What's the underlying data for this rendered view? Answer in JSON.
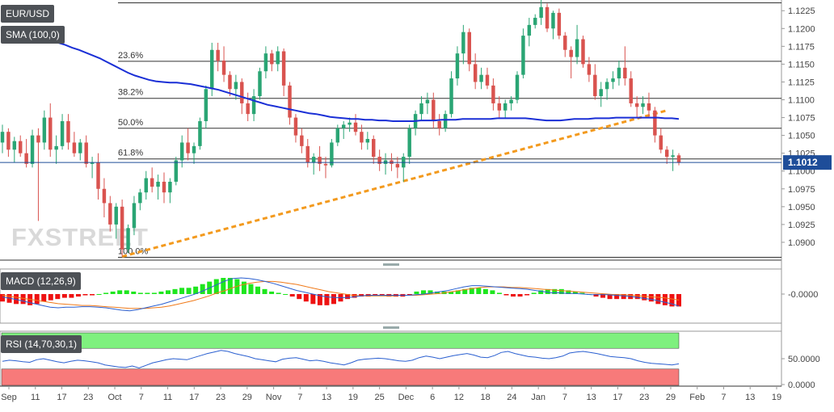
{
  "symbol": "EUR/USD",
  "watermark": "FXSTREET",
  "indicators": {
    "sma_label": "SMA (100,0)",
    "macd_label": "MACD (12,26,9)",
    "rsi_label": "RSI (14,70,30,1)"
  },
  "colors": {
    "up": "#2aa574",
    "down": "#d9534f",
    "sma": "#1a2fd6",
    "trend": "#f39a1e",
    "macd_pos": "#1ee61e",
    "macd_neg": "#ee1111",
    "macd_line": "#2a5fd0",
    "signal_line": "#f07a1a",
    "rsi_line": "#2a5fd0",
    "ob_zone": "#7ff07f",
    "os_zone": "#f77a7a",
    "price_tag": "#1e4d99"
  },
  "chart_data": [
    {
      "type": "candlestick",
      "name": "price",
      "yticks": [
        "1.1225",
        "1.1200",
        "1.1175",
        "1.1150",
        "1.1125",
        "1.1100",
        "1.1075",
        "1.1050",
        "1.1025",
        "1.1000",
        "1.0975",
        "1.0950",
        "1.0925",
        "1.0900"
      ],
      "ylim": [
        1.0875,
        1.124
      ],
      "current_price": "1.1012",
      "x_labels": [
        "Sep",
        "11",
        "17",
        "23",
        "Oct",
        "7",
        "11",
        "17",
        "23",
        "29",
        "Nov",
        "7",
        "13",
        "19",
        "25",
        "Dec",
        "6",
        "12",
        "18",
        "24",
        "Jan",
        "7",
        "13",
        "17",
        "23",
        "29",
        "Feb",
        "7",
        "13",
        "19"
      ],
      "fibonacci": [
        {
          "label": "23.6%",
          "level": 1.1154
        },
        {
          "label": "38.2%",
          "level": 1.1102
        },
        {
          "label": "50.0%",
          "level": 1.106
        },
        {
          "label": "61.8%",
          "level": 1.1017
        },
        {
          "label": "100.0%",
          "level": 1.0879
        }
      ],
      "top_line": 1.1236,
      "trendline": [
        [
          1.088,
          1.1085
        ]
      ],
      "ohlc": [
        [
          1.104,
          1.1065,
          1.1025,
          1.1055
        ],
        [
          1.1055,
          1.106,
          1.102,
          1.103
        ],
        [
          1.103,
          1.1048,
          1.1012,
          1.1042
        ],
        [
          1.1042,
          1.105,
          1.102,
          1.1025
        ],
        [
          1.1025,
          1.1045,
          1.1005,
          1.101
        ],
        [
          1.101,
          1.1058,
          1.1005,
          1.105
        ],
        [
          1.105,
          1.106,
          1.093,
          1.104
        ],
        [
          1.104,
          1.1085,
          1.103,
          1.1075
        ],
        [
          1.1075,
          1.1095,
          1.102,
          1.103
        ],
        [
          1.103,
          1.105,
          1.101,
          1.1035
        ],
        [
          1.1035,
          1.108,
          1.103,
          1.107
        ],
        [
          1.107,
          1.108,
          1.103,
          1.104
        ],
        [
          1.104,
          1.1055,
          1.102,
          1.1025
        ],
        [
          1.1025,
          1.1045,
          1.1015,
          1.104
        ],
        [
          1.104,
          1.105,
          1.1005,
          1.101
        ],
        [
          1.101,
          1.102,
          1.099,
          1.1012
        ],
        [
          1.1012,
          1.1025,
          1.096,
          1.0975
        ],
        [
          1.0975,
          1.099,
          1.0935,
          1.0955
        ],
        [
          1.0955,
          1.0965,
          1.0915,
          1.0925
        ],
        [
          1.0925,
          1.0955,
          1.0905,
          1.095
        ],
        [
          1.095,
          1.096,
          1.088,
          1.089
        ],
        [
          1.089,
          1.0925,
          1.0885,
          1.092
        ],
        [
          1.092,
          1.0965,
          1.091,
          1.0955
        ],
        [
          1.0955,
          1.0975,
          1.0945,
          1.097
        ],
        [
          1.097,
          1.1,
          1.096,
          1.099
        ],
        [
          1.099,
          1.1005,
          1.097,
          1.0978
        ],
        [
          1.0978,
          1.0995,
          1.096,
          1.0985
        ],
        [
          1.0985,
          1.0998,
          1.0955,
          1.097
        ],
        [
          1.097,
          1.099,
          1.0955,
          1.0985
        ],
        [
          1.0985,
          1.102,
          1.098,
          1.1015
        ],
        [
          1.1015,
          1.105,
          1.1005,
          1.104
        ],
        [
          1.104,
          1.106,
          1.1015,
          1.1025
        ],
        [
          1.1025,
          1.104,
          1.101,
          1.1035
        ],
        [
          1.1035,
          1.1075,
          1.103,
          1.107
        ],
        [
          1.107,
          1.112,
          1.106,
          1.1115
        ],
        [
          1.1115,
          1.118,
          1.1105,
          1.117
        ],
        [
          1.117,
          1.118,
          1.114,
          1.1155
        ],
        [
          1.1155,
          1.1175,
          1.1125,
          1.1135
        ],
        [
          1.1135,
          1.114,
          1.1105,
          1.1115
        ],
        [
          1.1115,
          1.1135,
          1.11,
          1.1125
        ],
        [
          1.1125,
          1.113,
          1.108,
          1.1095
        ],
        [
          1.1095,
          1.111,
          1.107,
          1.108
        ],
        [
          1.108,
          1.1115,
          1.107,
          1.1105
        ],
        [
          1.1105,
          1.1145,
          1.11,
          1.114
        ],
        [
          1.114,
          1.1175,
          1.113,
          1.1165
        ],
        [
          1.1165,
          1.117,
          1.114,
          1.115
        ],
        [
          1.115,
          1.1175,
          1.114,
          1.1168
        ],
        [
          1.1168,
          1.1172,
          1.1105,
          1.112
        ],
        [
          1.112,
          1.1125,
          1.1065,
          1.1075
        ],
        [
          1.1075,
          1.108,
          1.104,
          1.105
        ],
        [
          1.105,
          1.106,
          1.1025,
          1.1035
        ],
        [
          1.1035,
          1.1045,
          1.1005,
          1.1012
        ],
        [
          1.1012,
          1.1025,
          1.0995,
          1.102
        ],
        [
          1.102,
          1.1035,
          1.1,
          1.101
        ],
        [
          1.101,
          1.102,
          1.099,
          1.1008
        ],
        [
          1.1008,
          1.1045,
          1.1005,
          1.104
        ],
        [
          1.104,
          1.1065,
          1.1035,
          1.106
        ],
        [
          1.106,
          1.107,
          1.1045,
          1.1065
        ],
        [
          1.1065,
          1.1075,
          1.1055,
          1.1068
        ],
        [
          1.1068,
          1.108,
          1.105,
          1.1055
        ],
        [
          1.1055,
          1.1065,
          1.103,
          1.104
        ],
        [
          1.104,
          1.1055,
          1.103,
          1.1045
        ],
        [
          1.1045,
          1.105,
          1.101,
          1.102
        ],
        [
          1.102,
          1.103,
          1.1,
          1.101
        ],
        [
          1.101,
          1.1025,
          1.0995,
          1.1015
        ],
        [
          1.1015,
          1.1025,
          1.1,
          1.101
        ],
        [
          1.101,
          1.102,
          1.099,
          1.1005
        ],
        [
          1.1005,
          1.1025,
          1.0985,
          1.102
        ],
        [
          1.102,
          1.1065,
          1.101,
          1.106
        ],
        [
          1.106,
          1.1085,
          1.105,
          1.108
        ],
        [
          1.108,
          1.1105,
          1.107,
          1.1095
        ],
        [
          1.1095,
          1.111,
          1.108,
          1.11
        ],
        [
          1.11,
          1.111,
          1.106,
          1.107
        ],
        [
          1.107,
          1.108,
          1.105,
          1.106
        ],
        [
          1.106,
          1.1085,
          1.1055,
          1.108
        ],
        [
          1.108,
          1.114,
          1.1075,
          1.113
        ],
        [
          1.113,
          1.1175,
          1.112,
          1.1165
        ],
        [
          1.1165,
          1.1205,
          1.115,
          1.1195
        ],
        [
          1.1195,
          1.12,
          1.114,
          1.115
        ],
        [
          1.115,
          1.1165,
          1.1115,
          1.1125
        ],
        [
          1.1125,
          1.1145,
          1.1115,
          1.1135
        ],
        [
          1.1135,
          1.1145,
          1.1115,
          1.112
        ],
        [
          1.112,
          1.113,
          1.1085,
          1.1095
        ],
        [
          1.1095,
          1.1105,
          1.1075,
          1.1085
        ],
        [
          1.1085,
          1.11,
          1.1075,
          1.1095
        ],
        [
          1.1095,
          1.1105,
          1.1085,
          1.11
        ],
        [
          1.11,
          1.114,
          1.1095,
          1.1135
        ],
        [
          1.1135,
          1.12,
          1.113,
          1.119
        ],
        [
          1.119,
          1.1215,
          1.1175,
          1.1205
        ],
        [
          1.1205,
          1.122,
          1.12,
          1.1215
        ],
        [
          1.1215,
          1.124,
          1.1205,
          1.123
        ],
        [
          1.123,
          1.1235,
          1.1195,
          1.12
        ],
        [
          1.12,
          1.1225,
          1.1185,
          1.1222
        ],
        [
          1.1222,
          1.1228,
          1.1185,
          1.119
        ],
        [
          1.119,
          1.1195,
          1.116,
          1.117
        ],
        [
          1.117,
          1.1175,
          1.113,
          1.116
        ],
        [
          1.116,
          1.1205,
          1.115,
          1.1185
        ],
        [
          1.1185,
          1.119,
          1.1145,
          1.115
        ],
        [
          1.115,
          1.116,
          1.1125,
          1.1135
        ],
        [
          1.1135,
          1.115,
          1.11,
          1.1105
        ],
        [
          1.1105,
          1.1125,
          1.109,
          1.1115
        ],
        [
          1.1115,
          1.113,
          1.11,
          1.1125
        ],
        [
          1.1125,
          1.114,
          1.1115,
          1.113
        ],
        [
          1.113,
          1.1155,
          1.112,
          1.1145
        ],
        [
          1.1145,
          1.1175,
          1.112,
          1.113
        ],
        [
          1.113,
          1.114,
          1.109,
          1.1095
        ],
        [
          1.1095,
          1.1105,
          1.1075,
          1.109
        ],
        [
          1.109,
          1.1105,
          1.108,
          1.1095
        ],
        [
          1.1095,
          1.111,
          1.1075,
          1.1085
        ],
        [
          1.1085,
          1.109,
          1.104,
          1.105
        ],
        [
          1.105,
          1.106,
          1.1025,
          1.103
        ],
        [
          1.103,
          1.1035,
          1.101,
          1.102
        ],
        [
          1.102,
          1.103,
          1.1,
          1.1022
        ],
        [
          1.1022,
          1.1025,
          1.1008,
          1.1012
        ]
      ],
      "sma100": [
        1.12,
        1.1198,
        1.1196,
        1.1193,
        1.1191,
        1.1188,
        1.1185,
        1.1182,
        1.118,
        1.1177,
        1.1173,
        1.117,
        1.1166,
        1.1162,
        1.1158,
        1.1153,
        1.1148,
        1.1143,
        1.1138,
        1.1134,
        1.1131,
        1.1128,
        1.1126,
        1.1125,
        1.1124,
        1.1124,
        1.1123,
        1.1122,
        1.112,
        1.1118,
        1.1116,
        1.1114,
        1.1111,
        1.1108,
        1.1105,
        1.1102,
        1.1099,
        1.1096,
        1.1093,
        1.1091,
        1.1089,
        1.1087,
        1.1085,
        1.1083,
        1.1081,
        1.108,
        1.1078,
        1.1076,
        1.1075,
        1.1074,
        1.1073,
        1.1073,
        1.1072,
        1.1072,
        1.1071,
        1.1071,
        1.107,
        1.107,
        1.107,
        1.107,
        1.1071,
        1.1071,
        1.1071,
        1.1072,
        1.1072,
        1.1072,
        1.1073,
        1.1073,
        1.1073,
        1.1073,
        1.1073,
        1.1074,
        1.1074,
        1.1074,
        1.1074,
        1.1074,
        1.1073,
        1.1072,
        1.1071,
        1.1071,
        1.1071,
        1.1072,
        1.1073,
        1.1073,
        1.1073,
        1.1074,
        1.1074,
        1.1074,
        1.1075,
        1.1075,
        1.1075,
        1.1075,
        1.1075,
        1.1075,
        1.1075,
        1.1074,
        1.1074,
        1.1073
      ],
      "sma_start_index": 0
    },
    {
      "type": "bar+line",
      "name": "macd",
      "ytick": "-0.0000",
      "histogram": [
        -0.0006,
        -0.0007,
        -0.0008,
        -0.0008,
        -0.0009,
        -0.0008,
        -0.0006,
        -0.0005,
        -0.0004,
        -0.0003,
        -0.0003,
        -0.0002,
        -0.0001,
        -0.0001,
        0.0,
        0.0001,
        0.0002,
        0.0003,
        0.0003,
        0.0002,
        0.0001,
        0.0001,
        0.0001,
        0.0002,
        0.0003,
        0.0004,
        0.0005,
        0.0005,
        0.0006,
        0.0008,
        0.001,
        0.0012,
        0.0013,
        0.0013,
        0.0012,
        0.001,
        0.0008,
        0.0006,
        0.0004,
        0.0002,
        0.0001,
        0.0,
        -0.0002,
        -0.0004,
        -0.0006,
        -0.0008,
        -0.0009,
        -0.0009,
        -0.0008,
        -0.0006,
        -0.0004,
        -0.0003,
        -0.0002,
        -0.0002,
        -0.0001,
        -0.0001,
        -0.0002,
        -0.0002,
        -0.0002,
        -0.0001,
        0.0002,
        0.0003,
        0.0003,
        0.0002,
        0.0002,
        0.0002,
        0.0003,
        0.0004,
        0.0005,
        0.0005,
        0.0004,
        0.0003,
        0.0001,
        -0.0001,
        -0.0002,
        -0.0002,
        -0.0001,
        0.0001,
        0.0003,
        0.0004,
        0.0004,
        0.0004,
        0.0003,
        0.0002,
        0.0001,
        0.0,
        -0.0002,
        -0.0003,
        -0.0004,
        -0.0004,
        -0.0004,
        -0.0004,
        -0.0004,
        -0.0005,
        -0.0006,
        -0.0008,
        -0.0009,
        -0.001,
        -0.001
      ],
      "macd": [
        -0.0005,
        -0.0007,
        -0.001,
        -0.0013,
        -0.0016,
        -0.0019,
        -0.0022,
        -0.0023,
        -0.0022,
        -0.0022,
        -0.0021,
        -0.0021,
        -0.0022,
        -0.0023,
        -0.0025,
        -0.0027,
        -0.0028,
        -0.0026,
        -0.0023,
        -0.002,
        -0.0017,
        -0.0013,
        -0.0009,
        -0.0005,
        -0.0001,
        0.0004,
        0.001,
        0.0016,
        0.0022,
        0.0026,
        0.0027,
        0.0026,
        0.0024,
        0.0021,
        0.0018,
        0.0014,
        0.001,
        0.0006,
        0.0003,
        0.0,
        -0.0003,
        -0.0005,
        -0.0006,
        -0.0006,
        -0.0005,
        -0.0003,
        -0.0002,
        -0.0002,
        -0.0002,
        -0.0002,
        -0.0002,
        -0.0002,
        -0.0001,
        0.0,
        0.0002,
        0.0004,
        0.0006,
        0.0009,
        0.0012,
        0.0014,
        0.0014,
        0.0013,
        0.0012,
        0.0011,
        0.001,
        0.0009,
        0.0008,
        0.0006,
        0.0004,
        0.0002,
        0.0002,
        0.0001,
        0.0001,
        0.0,
        -0.0001,
        -0.0001,
        -0.0001,
        -0.0002,
        -0.0003,
        -0.0004,
        -0.0006,
        -0.0008,
        -0.001,
        -0.0013,
        -0.0016,
        -0.002
      ],
      "signal": [
        -0.0002,
        -0.0004,
        -0.0006,
        -0.0008,
        -0.001,
        -0.0012,
        -0.0014,
        -0.0016,
        -0.0017,
        -0.0018,
        -0.0019,
        -0.0019,
        -0.002,
        -0.0021,
        -0.0022,
        -0.0023,
        -0.0024,
        -0.0024,
        -0.0024,
        -0.0023,
        -0.0022,
        -0.002,
        -0.0017,
        -0.0014,
        -0.0011,
        -0.0007,
        -0.0003,
        0.0002,
        0.0006,
        0.0011,
        0.0015,
        0.0018,
        0.002,
        0.0021,
        0.0021,
        0.002,
        0.0018,
        0.0016,
        0.0013,
        0.001,
        0.0007,
        0.0004,
        0.0002,
        0.0,
        -0.0002,
        -0.0003,
        -0.0003,
        -0.0003,
        -0.0003,
        -0.0003,
        -0.0002,
        -0.0002,
        -0.0002,
        -0.0001,
        0.0,
        0.0001,
        0.0003,
        0.0005,
        0.0007,
        0.0009,
        0.0011,
        0.0012,
        0.0012,
        0.0012,
        0.0011,
        0.0011,
        0.001,
        0.0009,
        0.0008,
        0.0007,
        0.0006,
        0.0005,
        0.0004,
        0.0003,
        0.0002,
        0.0001,
        0.0,
        -0.0001,
        -0.0001,
        -0.0002,
        -0.0003,
        -0.0004,
        -0.0005,
        -0.0006,
        -0.0008,
        -0.001
      ]
    },
    {
      "type": "line",
      "name": "rsi",
      "yticks": [
        "50.0000",
        "0.0000"
      ],
      "ylim": [
        0,
        100
      ],
      "overbought": 70,
      "oversold": 30,
      "values": [
        45,
        47,
        46,
        44,
        43,
        48,
        50,
        47,
        44,
        42,
        45,
        47,
        46,
        44,
        42,
        38,
        36,
        34,
        33,
        36,
        32,
        37,
        42,
        45,
        48,
        50,
        49,
        48,
        52,
        56,
        60,
        63,
        66,
        64,
        60,
        57,
        54,
        50,
        48,
        46,
        44,
        49,
        51,
        52,
        49,
        46,
        47,
        45,
        42,
        40,
        38,
        42,
        47,
        49,
        50,
        51,
        50,
        48,
        46,
        45,
        47,
        52,
        55,
        53,
        50,
        53,
        56,
        58,
        60,
        57,
        53,
        52,
        56,
        62,
        64,
        60,
        57,
        54,
        53,
        51,
        50,
        52,
        55,
        61,
        63,
        64,
        62,
        60,
        57,
        54,
        53,
        52,
        50,
        46,
        43,
        41,
        40,
        39,
        38,
        40
      ]
    }
  ]
}
